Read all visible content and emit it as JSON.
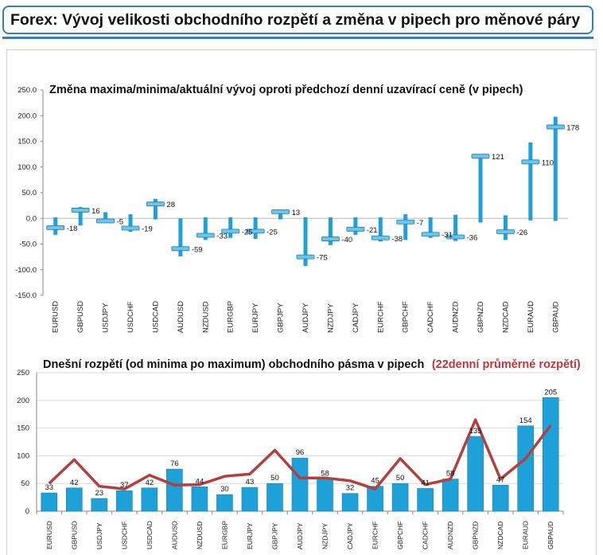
{
  "page": {
    "title": "Forex: Vývoj velikosti obchodního rozpětí a změna v pipech pro měnové páry"
  },
  "chart_data": [
    {
      "type": "range",
      "title": "Změna maxima/minima/aktuální vývoj oproti předchozí denní uzavírací ceně (v pipech)",
      "ylim": [
        -150,
        250
      ],
      "yticks": [
        "250.0",
        "200.0",
        "150.0",
        "100.0",
        "50.0",
        "0.0",
        "-50.0",
        "-100.0",
        "-150.0"
      ],
      "categories": [
        "EURUSD",
        "GBPUSD",
        "USDJPY",
        "USDCHF",
        "USDCAD",
        "AUDUSD",
        "NZDUSD",
        "EURGBP",
        "EURJPY",
        "GBPJPY",
        "AUDJPY",
        "NZDJPY",
        "CADJPY",
        "EURCHF",
        "GBPCHF",
        "CADCHF",
        "AUDNZD",
        "GBPNZD",
        "NZDCAD",
        "EURAUD",
        "GBPAUD"
      ],
      "high": [
        2,
        22,
        12,
        8,
        38,
        0,
        2,
        2,
        2,
        17,
        2,
        2,
        2,
        2,
        8,
        2,
        7,
        125,
        6,
        148,
        198
      ],
      "low": [
        -32,
        -14,
        -7,
        -26,
        -2,
        -74,
        -42,
        -38,
        -40,
        -2,
        -93,
        -52,
        -32,
        -45,
        -42,
        -38,
        -44,
        -8,
        -42,
        -4,
        -5
      ],
      "current": [
        -18,
        16,
        -5,
        -19,
        28,
        -59,
        -33,
        -25,
        -25,
        13,
        -75,
        -40,
        -21,
        -38,
        -7,
        -31,
        -36,
        121,
        -26,
        110,
        178
      ],
      "labels": [
        "-18",
        "16",
        "-5",
        "-19",
        "28",
        "-59",
        "-33",
        "-25",
        "-25",
        "13",
        "-75",
        "-40",
        "-21",
        "-38",
        "-7",
        "-31",
        "-36",
        "121",
        "-26",
        "110",
        "178"
      ],
      "bar_color": "#1ea0d8"
    },
    {
      "type": "bar",
      "title": "Dnešní rozpětí (od minima po maximum) obchodního pásma v pipech",
      "title_note": "(22denní průměrné rozpětí)",
      "ylim": [
        0,
        250
      ],
      "yticks": [
        "250",
        "200",
        "150",
        "100",
        "50",
        "0"
      ],
      "categories": [
        "EURUSD",
        "GBPUSD",
        "USDJPY",
        "USDCHF",
        "USDCAD",
        "AUDUSD",
        "NZDUSD",
        "EURGBP",
        "EURJPY",
        "GBPJPY",
        "AUDJPY",
        "NZDJPY",
        "CADJPY",
        "EURCHF",
        "GBPCHF",
        "CADCHF",
        "AUDNZD",
        "GBPNZD",
        "NZDCAD",
        "EURAUD",
        "GBPAUD"
      ],
      "series": [
        {
          "values": [
            33,
            42,
            23,
            37,
            42,
            76,
            44,
            30,
            43,
            50,
            96,
            58,
            32,
            45,
            50,
            41,
            58,
            135,
            47,
            154,
            205
          ],
          "color": "#1ea0d8"
        },
        {
          "values": [
            50,
            93,
            45,
            40,
            65,
            47,
            48,
            63,
            67,
            110,
            60,
            60,
            55,
            40,
            95,
            48,
            58,
            165,
            58,
            95,
            155
          ],
          "color": "#b2403f"
        }
      ],
      "labels": [
        "33",
        "42",
        "23",
        "37",
        "42",
        "76",
        "44",
        "30",
        "43",
        "50",
        "96",
        "58",
        "32",
        "45",
        "50",
        "41",
        "58",
        "135",
        "47",
        "154",
        "205"
      ]
    }
  ]
}
